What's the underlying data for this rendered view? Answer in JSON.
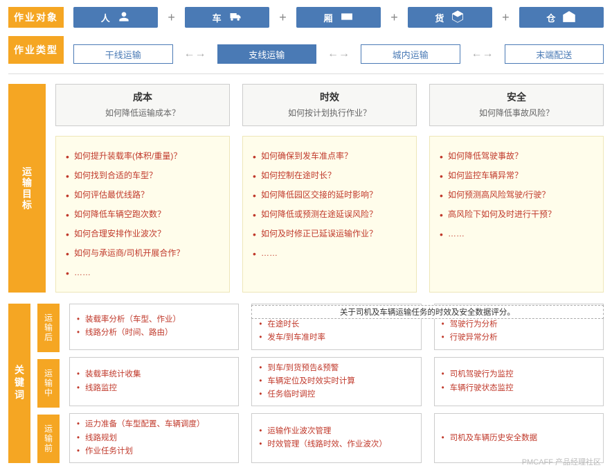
{
  "colors": {
    "orange": "#f5a623",
    "blue": "#4a7ab5",
    "yellow_bg": "#fffdeb",
    "yellow_border": "#eee6b8",
    "red_text": "#c0392b",
    "grey_border": "#cccccc"
  },
  "labels": {
    "objects": "作业对象",
    "types": "作业类型",
    "goals": "运输目标",
    "keywords": "关键词"
  },
  "objects": [
    {
      "name": "人",
      "icon": "person"
    },
    {
      "name": "车",
      "icon": "truck"
    },
    {
      "name": "厢",
      "icon": "container"
    },
    {
      "name": "货",
      "icon": "box"
    },
    {
      "name": "仓",
      "icon": "warehouse"
    }
  ],
  "plus": "+",
  "types": [
    {
      "name": "干线运输",
      "filled": false
    },
    {
      "name": "支线运输",
      "filled": true
    },
    {
      "name": "城内运输",
      "filled": false
    },
    {
      "name": "末端配送",
      "filled": false
    }
  ],
  "arrow": "←→",
  "goals": [
    {
      "title": "成本",
      "subtitle": "如何降低运输成本？",
      "items": [
        "如何提升装载率(体积/重量)？",
        "如何找到合适的车型？",
        "如何评估最优线路？",
        "如何降低车辆空跑次数？",
        "如何合理安排作业波次？",
        "如何与承运商/司机开展合作？",
        "……"
      ]
    },
    {
      "title": "时效",
      "subtitle": "如何按计划执行作业？",
      "items": [
        "如何确保到发车准点率？",
        "如何控制在途时长？",
        "如何降低园区交接的延时影响？",
        "如何降低或预测在途延误风险？",
        "如何及时修正已延误运输作业？",
        "……"
      ]
    },
    {
      "title": "安全",
      "subtitle": "如何降低事故风险？",
      "items": [
        "如何降低驾驶事故？",
        "如何监控车辆异常？",
        "如何预测高风险驾驶/行驶？",
        "高风险下如何及时进行干预？",
        "……"
      ]
    }
  ],
  "keywords": {
    "banner": "关于司机及车辆运输任务的时效及安全数据评分。",
    "stages": [
      {
        "label": "运输后",
        "cols": [
          [
            "装载率分析（车型、作业）",
            "线路分析（时间、路由）"
          ],
          [
            "在途时长",
            "发车/到车准时率"
          ],
          [
            "驾驶行为分析",
            "行驶异常分析"
          ]
        ]
      },
      {
        "label": "运输中",
        "cols": [
          [
            "装载率统计收集",
            "线路监控"
          ],
          [
            "到车/到货预告&预警",
            "车辆定位及时效实时计算",
            "任务临时调控"
          ],
          [
            "司机驾驶行为监控",
            "车辆行驶状态监控"
          ]
        ]
      },
      {
        "label": "运输前",
        "cols": [
          [
            "运力准备（车型配置、车辆调度）",
            "线路规划",
            "作业任务计划"
          ],
          [
            "运输作业波次管理",
            "时效管理（线路时效、作业波次）"
          ],
          [
            "司机及车辆历史安全数据"
          ]
        ]
      }
    ]
  },
  "watermark": "PMCAFF 产品经理社区"
}
